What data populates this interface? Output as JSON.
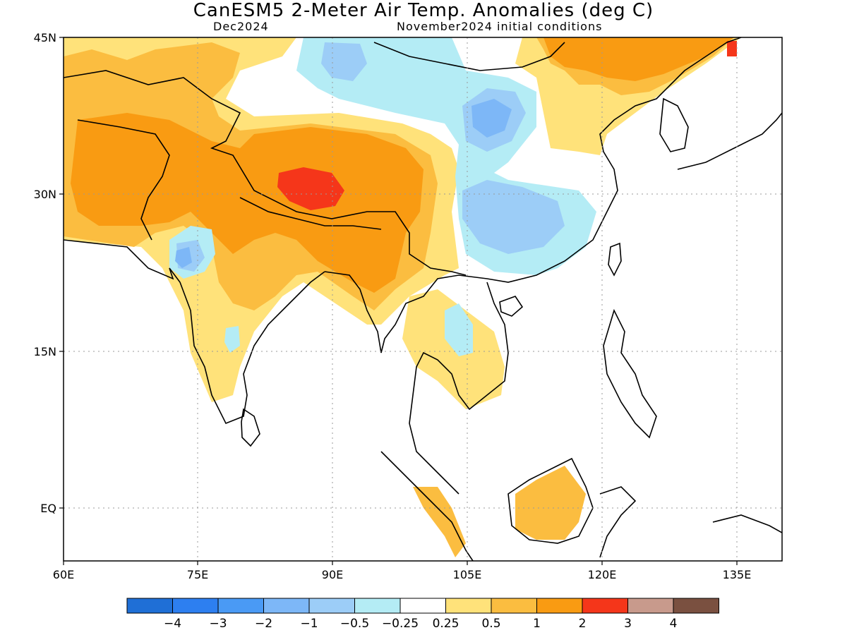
{
  "header": {
    "title": "CanESM5 2-Meter Air Temp. Anomalies (deg C)",
    "forecast_month": "Dec2024",
    "init_conditions": "November2024 initial conditions"
  },
  "map": {
    "lon_range": [
      60,
      140
    ],
    "lat_range": [
      -5,
      45
    ],
    "lat_ticks": [
      "45N",
      "30N",
      "15N",
      "EQ"
    ],
    "lon_ticks": [
      "60E",
      "75E",
      "90E",
      "105E",
      "120E",
      "135E"
    ],
    "grid": "dotted"
  },
  "colorbar": {
    "colors": [
      "#1f6fd6",
      "#2d7ff0",
      "#4a9af5",
      "#7db7f7",
      "#9ccdf7",
      "#b4ecf5",
      "#ffffff",
      "#ffe27a",
      "#fbbd40",
      "#f99b12",
      "#f5361a",
      "#c89a8c",
      "#7a5040"
    ],
    "labels": [
      "−4",
      "−3",
      "−2",
      "−1",
      "−0.5",
      "−0.25",
      "0.25",
      "0.5",
      "1",
      "2",
      "3",
      "4"
    ]
  }
}
